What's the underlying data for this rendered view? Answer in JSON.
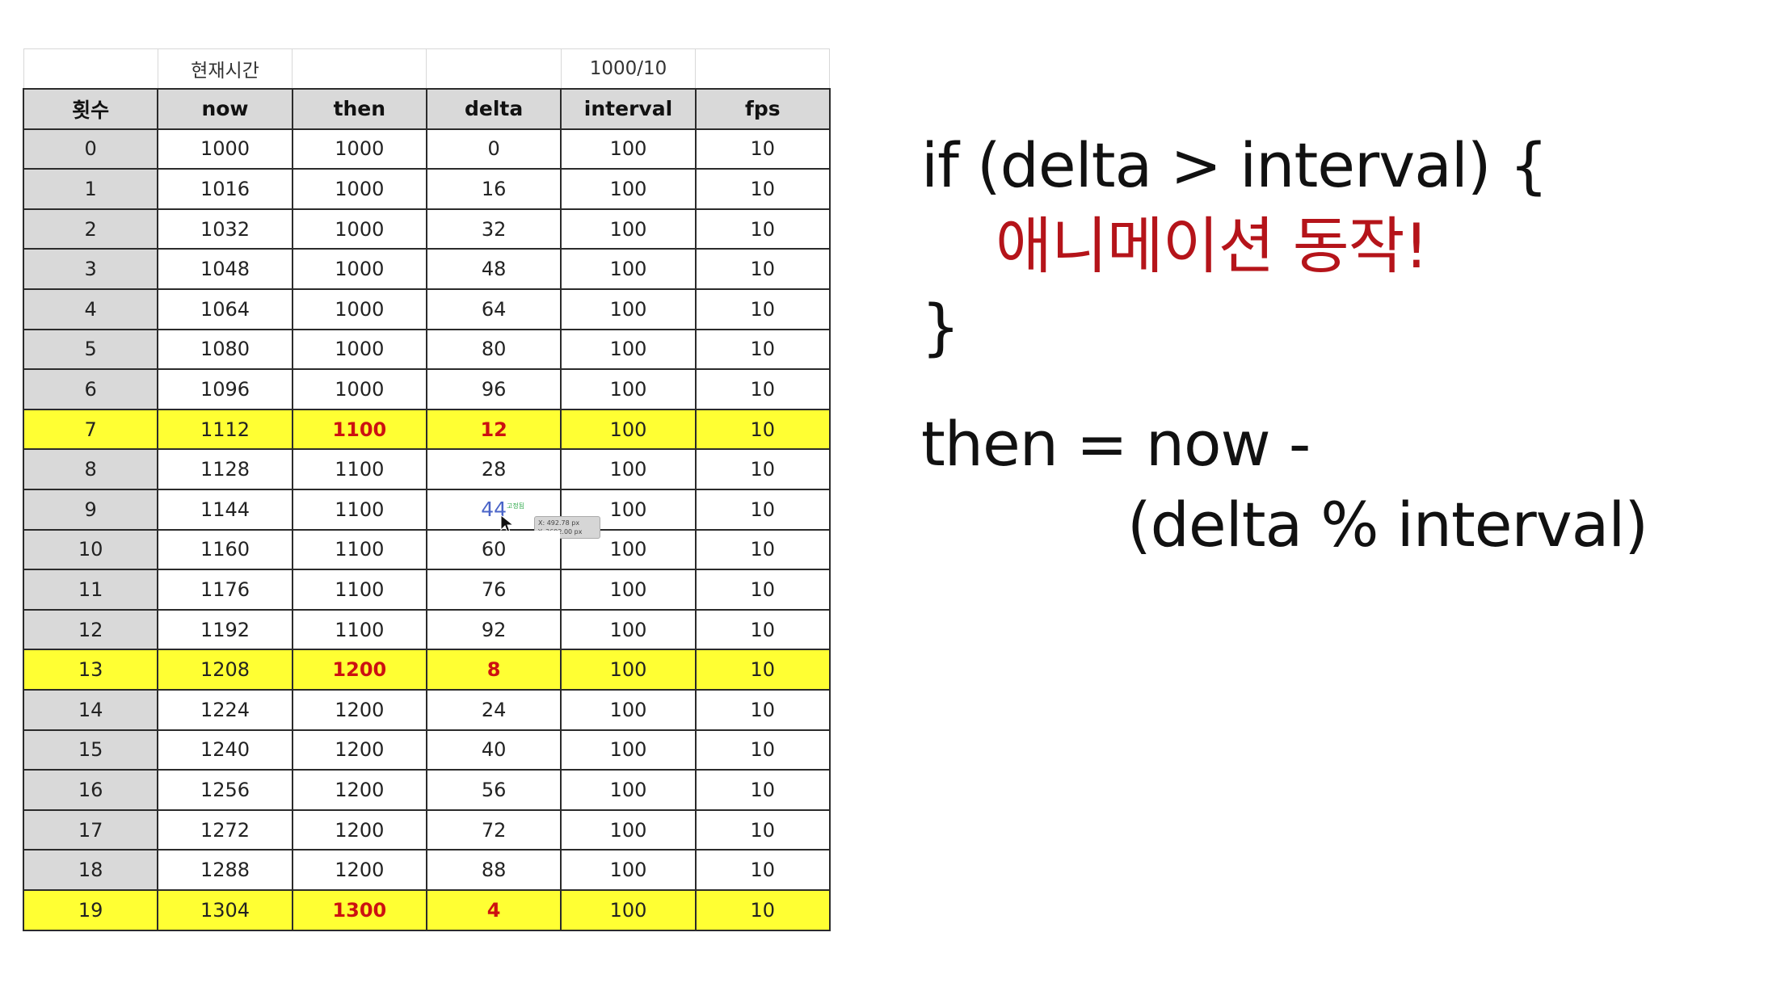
{
  "table": {
    "top_labels": [
      "",
      "현재시간",
      "",
      "",
      "1000/10",
      ""
    ],
    "headers": [
      "횟수",
      "now",
      "then",
      "delta",
      "interval",
      "fps"
    ],
    "rows": [
      {
        "count": "0",
        "now": "1000",
        "then": "1000",
        "delta": "0",
        "interval": "100",
        "fps": "10",
        "highlight": false
      },
      {
        "count": "1",
        "now": "1016",
        "then": "1000",
        "delta": "16",
        "interval": "100",
        "fps": "10",
        "highlight": false
      },
      {
        "count": "2",
        "now": "1032",
        "then": "1000",
        "delta": "32",
        "interval": "100",
        "fps": "10",
        "highlight": false
      },
      {
        "count": "3",
        "now": "1048",
        "then": "1000",
        "delta": "48",
        "interval": "100",
        "fps": "10",
        "highlight": false
      },
      {
        "count": "4",
        "now": "1064",
        "then": "1000",
        "delta": "64",
        "interval": "100",
        "fps": "10",
        "highlight": false
      },
      {
        "count": "5",
        "now": "1080",
        "then": "1000",
        "delta": "80",
        "interval": "100",
        "fps": "10",
        "highlight": false
      },
      {
        "count": "6",
        "now": "1096",
        "then": "1000",
        "delta": "96",
        "interval": "100",
        "fps": "10",
        "highlight": false
      },
      {
        "count": "7",
        "now": "1112",
        "then": "1100",
        "delta": "12",
        "interval": "100",
        "fps": "10",
        "highlight": true
      },
      {
        "count": "8",
        "now": "1128",
        "then": "1100",
        "delta": "28",
        "interval": "100",
        "fps": "10",
        "highlight": false
      },
      {
        "count": "9",
        "now": "1144",
        "then": "1100",
        "delta": "44",
        "interval": "100",
        "fps": "10",
        "highlight": false
      },
      {
        "count": "10",
        "now": "1160",
        "then": "1100",
        "delta": "60",
        "interval": "100",
        "fps": "10",
        "highlight": false
      },
      {
        "count": "11",
        "now": "1176",
        "then": "1100",
        "delta": "76",
        "interval": "100",
        "fps": "10",
        "highlight": false
      },
      {
        "count": "12",
        "now": "1192",
        "then": "1100",
        "delta": "92",
        "interval": "100",
        "fps": "10",
        "highlight": false
      },
      {
        "count": "13",
        "now": "1208",
        "then": "1200",
        "delta": "8",
        "interval": "100",
        "fps": "10",
        "highlight": true
      },
      {
        "count": "14",
        "now": "1224",
        "then": "1200",
        "delta": "24",
        "interval": "100",
        "fps": "10",
        "highlight": false
      },
      {
        "count": "15",
        "now": "1240",
        "then": "1200",
        "delta": "40",
        "interval": "100",
        "fps": "10",
        "highlight": false
      },
      {
        "count": "16",
        "now": "1256",
        "then": "1200",
        "delta": "56",
        "interval": "100",
        "fps": "10",
        "highlight": false
      },
      {
        "count": "17",
        "now": "1272",
        "then": "1200",
        "delta": "72",
        "interval": "100",
        "fps": "10",
        "highlight": false
      },
      {
        "count": "18",
        "now": "1288",
        "then": "1200",
        "delta": "88",
        "interval": "100",
        "fps": "10",
        "highlight": false
      },
      {
        "count": "19",
        "now": "1304",
        "then": "1300",
        "delta": "4",
        "interval": "100",
        "fps": "10",
        "highlight": true
      }
    ],
    "highlight_color": "#ffff33",
    "emphasis_color": "#cc1111",
    "header_bg": "#d9d9d9"
  },
  "cursor": {
    "row_count": "9",
    "tag": "고정됨",
    "tooltip_x": "X: 492.78 px",
    "tooltip_y": "Y: 3692.00 px",
    "icon": "mouse-pointer-icon"
  },
  "code": {
    "line1": "if (delta > interval) {",
    "line2": "애니메이션 동작!",
    "line3": "}",
    "line4": "then = now -",
    "line5": "(delta % interval)",
    "action_color": "#b5141a"
  }
}
